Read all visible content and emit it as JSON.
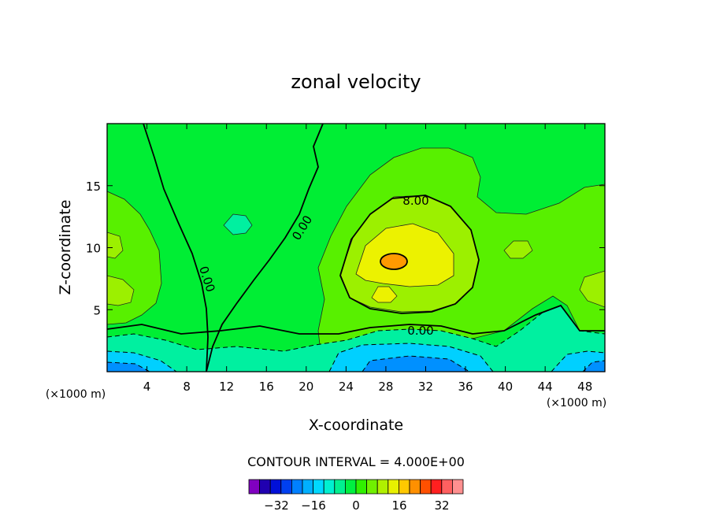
{
  "chart_data": {
    "type": "contour",
    "title": "zonal velocity",
    "xlabel": "X-coordinate",
    "ylabel": "Z-coordinate",
    "x_unit": "(×1000 m)",
    "y_unit": "(×1000 m)",
    "xlim": [
      0,
      50
    ],
    "ylim": [
      0,
      20
    ],
    "x_ticks": [
      4,
      8,
      12,
      16,
      20,
      24,
      28,
      32,
      36,
      40,
      44,
      48
    ],
    "y_ticks": [
      5,
      10,
      15
    ],
    "contour_interval_text": "CONTOUR INTERVAL = 4.000E+00",
    "contour_labels": [
      "8.00",
      "0.00",
      "0.00",
      "0.00"
    ],
    "colorbar": {
      "ticks": [
        "−32",
        "−16",
        "0",
        "16",
        "32"
      ],
      "colors": [
        "#8000c0",
        "#2000b0",
        "#0010d8",
        "#0040f0",
        "#0080ff",
        "#00b0ff",
        "#00d8ff",
        "#00f0d0",
        "#00f090",
        "#00f040",
        "#30f000",
        "#70f000",
        "#b0f000",
        "#e8f000",
        "#ffc800",
        "#ff9000",
        "#ff5000",
        "#ff2020",
        "#ff6060",
        "#ff9090"
      ]
    },
    "colors": {
      "background_field": "#00ee34",
      "positive_zone": "#58f000",
      "positive_zone_2": "#9cf000",
      "maximum_zone": "#ecf200",
      "peak": "#ff9a00",
      "negative_zone": "#00f0a0",
      "negative_zone_2": "#00d0ff",
      "minimum_zone": "#0090ff"
    }
  }
}
